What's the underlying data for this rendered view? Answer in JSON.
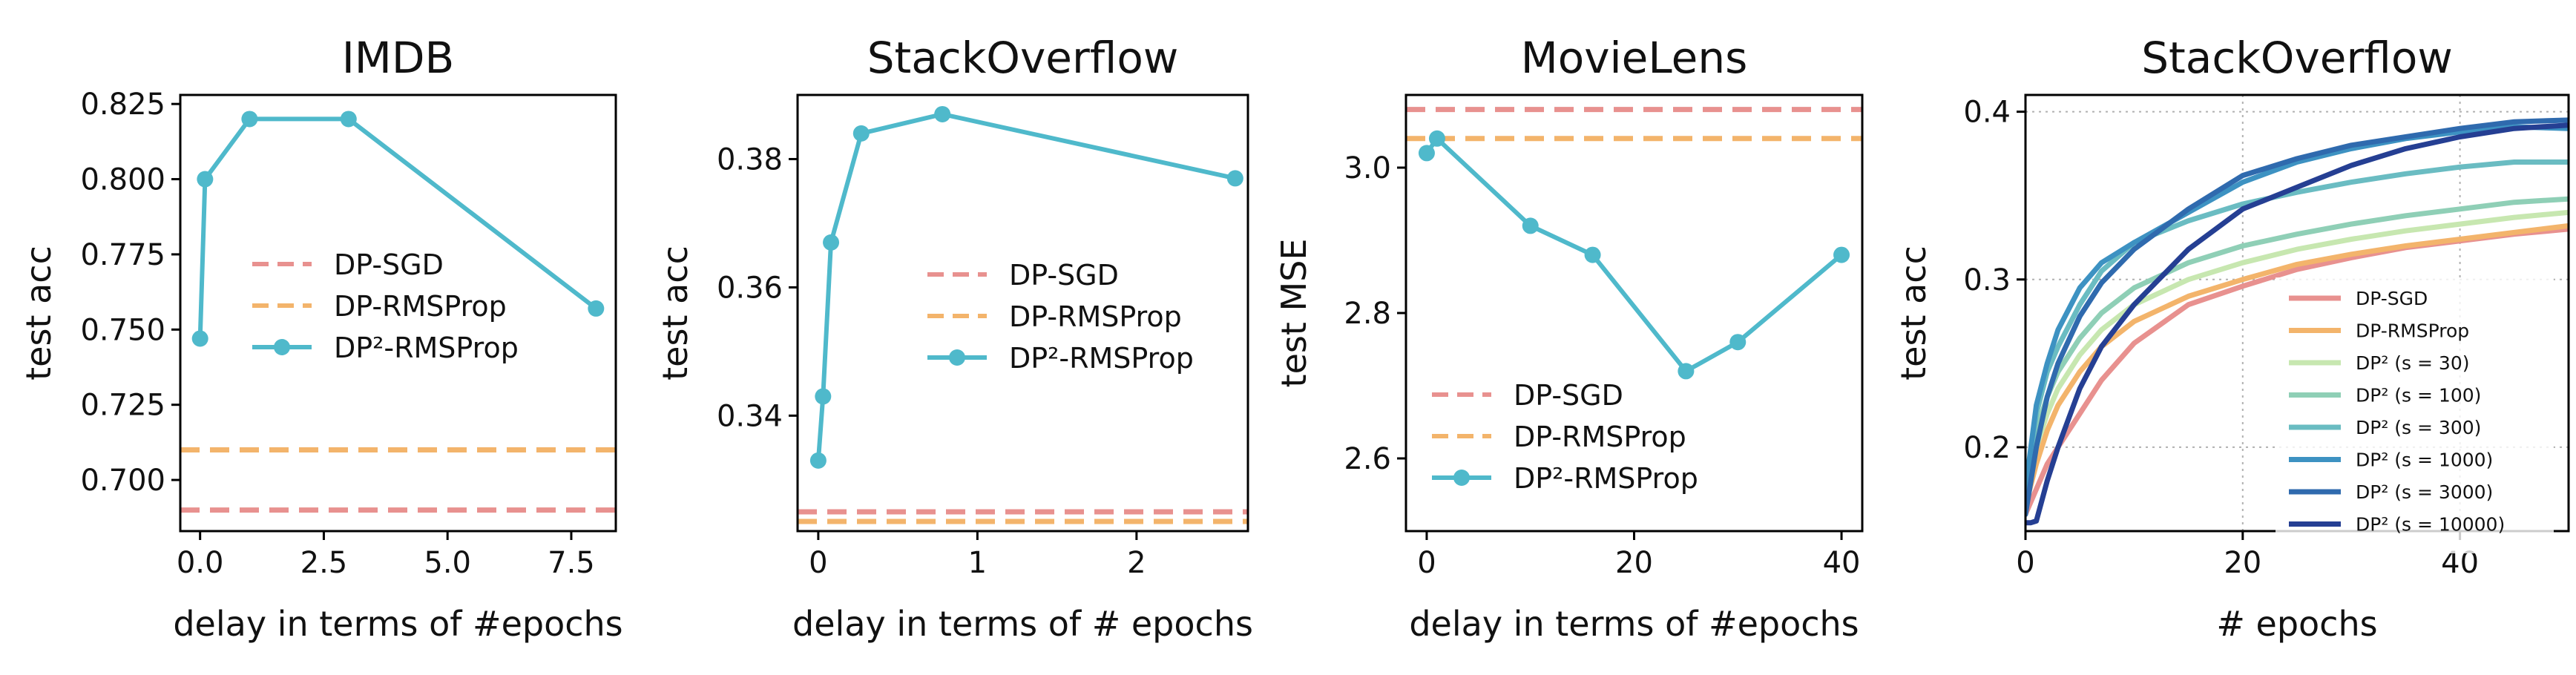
{
  "colors": {
    "dp_sgd": "#e8918f",
    "dp_rmsprop": "#f3b46b",
    "dp2": "#4fb9cb",
    "s30": "#c7e7b0",
    "s100": "#8fcfb6",
    "s300": "#6abcc2",
    "s1000": "#3d92c2",
    "s3000": "#2f6aae",
    "s10000": "#253f93"
  },
  "chart_data": [
    {
      "type": "line",
      "title": "IMDB",
      "xlabel": "delay in terms of #epochs",
      "ylabel": "test acc",
      "xlim": [
        -0.4,
        8.4
      ],
      "ylim": [
        0.683,
        0.828
      ],
      "xticks": [
        0.0,
        2.5,
        5.0,
        7.5
      ],
      "xtick_labels": [
        "0.0",
        "2.5",
        "5.0",
        "7.5"
      ],
      "yticks": [
        0.7,
        0.725,
        0.75,
        0.775,
        0.8,
        0.825
      ],
      "ytick_labels": [
        "0.700",
        "0.725",
        "0.750",
        "0.775",
        "0.800",
        "0.825"
      ],
      "baselines": [
        {
          "name": "DP-SGD",
          "value": 0.69,
          "color_key": "dp_sgd"
        },
        {
          "name": "DP-RMSProp",
          "value": 0.71,
          "color_key": "dp_rmsprop"
        }
      ],
      "series": [
        {
          "name": "DP²-RMSProp",
          "x": [
            0,
            0.1,
            1,
            3,
            8
          ],
          "y": [
            0.747,
            0.8,
            0.82,
            0.82,
            0.757
          ],
          "color_key": "dp2"
        }
      ],
      "legend": "center"
    },
    {
      "type": "line",
      "title": "StackOverflow",
      "xlabel": "delay in terms of # epochs",
      "ylabel": "test acc",
      "xlim": [
        -0.13,
        2.7
      ],
      "ylim": [
        0.322,
        0.39
      ],
      "xticks": [
        0,
        1,
        2
      ],
      "xtick_labels": [
        "0",
        "1",
        "2"
      ],
      "yticks": [
        0.34,
        0.36,
        0.38
      ],
      "ytick_labels": [
        "0.34",
        "0.36",
        "0.38"
      ],
      "baselines": [
        {
          "name": "DP-SGD",
          "value": 0.325,
          "color_key": "dp_sgd"
        },
        {
          "name": "DP-RMSProp",
          "value": 0.3235,
          "color_key": "dp_rmsprop"
        }
      ],
      "series": [
        {
          "name": "DP²-RMSProp",
          "x": [
            0,
            0.03,
            0.08,
            0.27,
            0.78,
            2.62
          ],
          "y": [
            0.333,
            0.343,
            0.367,
            0.384,
            0.387,
            0.377
          ],
          "color_key": "dp2"
        }
      ],
      "legend": "center-right"
    },
    {
      "type": "line",
      "title": "MovieLens",
      "xlabel": "delay in terms of #epochs",
      "ylabel": "test MSE",
      "xlim": [
        -2,
        42
      ],
      "ylim": [
        2.5,
        3.1
      ],
      "xticks": [
        0,
        20,
        40
      ],
      "xtick_labels": [
        "0",
        "20",
        "40"
      ],
      "yticks": [
        2.6,
        2.8,
        3.0
      ],
      "ytick_labels": [
        "2.6",
        "2.8",
        "3.0"
      ],
      "baselines": [
        {
          "name": "DP-SGD",
          "value": 3.08,
          "color_key": "dp_sgd"
        },
        {
          "name": "DP-RMSProp",
          "value": 3.04,
          "color_key": "dp_rmsprop"
        }
      ],
      "series": [
        {
          "name": "DP²-RMSProp",
          "x": [
            0,
            1,
            10,
            16,
            25,
            30,
            40
          ],
          "y": [
            3.02,
            3.04,
            2.92,
            2.88,
            2.72,
            2.76,
            2.88
          ],
          "color_key": "dp2"
        }
      ],
      "legend": "lower-left"
    },
    {
      "type": "line",
      "title": "StackOverflow",
      "xlabel": "# epochs",
      "ylabel": "test acc",
      "xlim": [
        0,
        50
      ],
      "ylim": [
        0.15,
        0.41
      ],
      "xticks": [
        0,
        20,
        40
      ],
      "xtick_labels": [
        "0",
        "20",
        "40"
      ],
      "yticks": [
        0.2,
        0.3,
        0.4
      ],
      "ytick_labels": [
        "0.2",
        "0.3",
        "0.4"
      ],
      "grid": true,
      "legend": "lower-right",
      "series": [
        {
          "name": "DP-SGD",
          "color_key": "dp_sgd",
          "x": [
            0,
            1,
            2,
            3,
            5,
            7,
            10,
            15,
            20,
            25,
            30,
            35,
            40,
            45,
            50
          ],
          "y": [
            0.16,
            0.175,
            0.19,
            0.2,
            0.22,
            0.24,
            0.262,
            0.285,
            0.296,
            0.306,
            0.313,
            0.319,
            0.323,
            0.327,
            0.33
          ]
        },
        {
          "name": "DP-RMSProp",
          "color_key": "dp_rmsprop",
          "x": [
            0,
            1,
            2,
            3,
            5,
            7,
            10,
            15,
            20,
            25,
            30,
            35,
            40,
            45,
            50
          ],
          "y": [
            0.165,
            0.19,
            0.21,
            0.225,
            0.245,
            0.26,
            0.275,
            0.29,
            0.3,
            0.309,
            0.315,
            0.32,
            0.324,
            0.328,
            0.332
          ]
        },
        {
          "name": "DP² (s = 30)",
          "color_key": "s30",
          "x": [
            0,
            1,
            2,
            3,
            5,
            7,
            10,
            15,
            20,
            25,
            30,
            35,
            40,
            45,
            50
          ],
          "y": [
            0.17,
            0.2,
            0.22,
            0.235,
            0.255,
            0.27,
            0.285,
            0.3,
            0.31,
            0.318,
            0.324,
            0.329,
            0.333,
            0.337,
            0.34
          ]
        },
        {
          "name": "DP² (s = 100)",
          "color_key": "s100",
          "x": [
            0,
            1,
            2,
            3,
            5,
            7,
            10,
            15,
            20,
            25,
            30,
            35,
            40,
            45,
            50
          ],
          "y": [
            0.17,
            0.21,
            0.23,
            0.245,
            0.265,
            0.28,
            0.295,
            0.31,
            0.32,
            0.327,
            0.333,
            0.338,
            0.342,
            0.346,
            0.348
          ]
        },
        {
          "name": "DP² (s = 300)",
          "color_key": "s300",
          "x": [
            0,
            1,
            2,
            3,
            5,
            7,
            10,
            15,
            20,
            25,
            30,
            35,
            40,
            45,
            50
          ],
          "y": [
            0.17,
            0.22,
            0.245,
            0.26,
            0.285,
            0.305,
            0.322,
            0.335,
            0.345,
            0.352,
            0.358,
            0.363,
            0.367,
            0.37,
            0.37
          ]
        },
        {
          "name": "DP² (s = 1000)",
          "color_key": "s1000",
          "x": [
            0,
            1,
            2,
            3,
            5,
            7,
            10,
            15,
            20,
            25,
            30,
            35,
            40,
            45,
            50
          ],
          "y": [
            0.175,
            0.225,
            0.25,
            0.27,
            0.295,
            0.31,
            0.322,
            0.34,
            0.358,
            0.37,
            0.378,
            0.384,
            0.388,
            0.391,
            0.39
          ]
        },
        {
          "name": "DP² (s = 3000)",
          "color_key": "s3000",
          "x": [
            0,
            1,
            2,
            3,
            5,
            7,
            10,
            15,
            20,
            25,
            30,
            35,
            40,
            45,
            50
          ],
          "y": [
            0.16,
            0.2,
            0.23,
            0.25,
            0.278,
            0.298,
            0.318,
            0.342,
            0.362,
            0.372,
            0.38,
            0.385,
            0.39,
            0.394,
            0.395
          ]
        },
        {
          "name": "DP² (s = 10000)",
          "color_key": "s10000",
          "x": [
            0,
            0.5,
            1,
            2,
            3,
            5,
            7,
            10,
            15,
            20,
            25,
            30,
            35,
            40,
            45,
            50
          ],
          "y": [
            0.155,
            0.155,
            0.156,
            0.18,
            0.2,
            0.235,
            0.26,
            0.285,
            0.318,
            0.342,
            0.355,
            0.368,
            0.378,
            0.385,
            0.39,
            0.392
          ]
        }
      ]
    }
  ]
}
